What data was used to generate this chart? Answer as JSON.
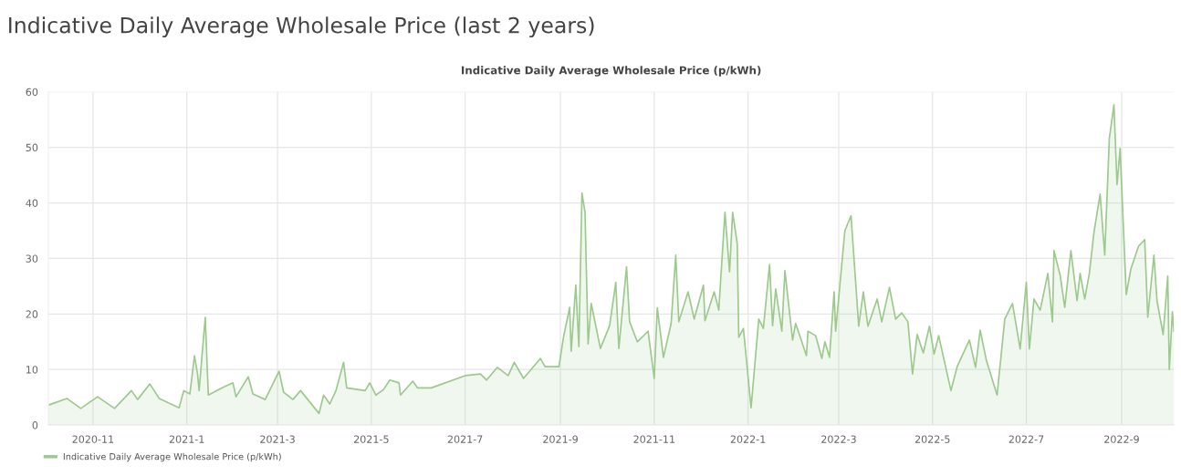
{
  "chart_data": {
    "type": "area",
    "title": "Indicative Daily Average Wholesale Price (last 2 years)",
    "subtitle": "Indicative Daily Average Wholesale Price (p/kWh)",
    "x": [
      "2020-10-03",
      "2020-10-15",
      "2020-10-24",
      "2020-11-04",
      "2020-11-15",
      "2020-11-26",
      "2020-11-30",
      "2020-12-08",
      "2020-12-14",
      "2020-12-27",
      "2020-12-30",
      "2021-01-03",
      "2021-01-06",
      "2021-01-08",
      "2021-01-09",
      "2021-01-13",
      "2021-01-15",
      "2021-01-24",
      "2021-01-31",
      "2021-02-02",
      "2021-02-10",
      "2021-02-13",
      "2021-02-21",
      "2021-03-02",
      "2021-03-05",
      "2021-03-11",
      "2021-03-16",
      "2021-03-28",
      "2021-03-31",
      "2021-04-04",
      "2021-04-08",
      "2021-04-13",
      "2021-04-15",
      "2021-04-27",
      "2021-04-30",
      "2021-05-04",
      "2021-05-09",
      "2021-05-13",
      "2021-05-19",
      "2021-05-20",
      "2021-05-28",
      "2021-05-31",
      "2021-06-09",
      "2021-07-01",
      "2021-07-11",
      "2021-07-15",
      "2021-07-22",
      "2021-07-29",
      "2021-08-02",
      "2021-08-08",
      "2021-08-19",
      "2021-08-22",
      "2021-08-31",
      "2021-09-03",
      "2021-09-07",
      "2021-09-08",
      "2021-09-11",
      "2021-09-13",
      "2021-09-15",
      "2021-09-17",
      "2021-09-19",
      "2021-09-21",
      "2021-09-27",
      "2021-10-03",
      "2021-10-07",
      "2021-10-09",
      "2021-10-14",
      "2021-10-16",
      "2021-10-21",
      "2021-10-28",
      "2021-11-01",
      "2021-11-03",
      "2021-11-07",
      "2021-11-12",
      "2021-11-15",
      "2021-11-17",
      "2021-11-23",
      "2021-11-27",
      "2021-12-03",
      "2021-12-04",
      "2021-12-10",
      "2021-12-13",
      "2021-12-17",
      "2021-12-20",
      "2021-12-22",
      "2021-12-25",
      "2021-12-26",
      "2021-12-29",
      "2022-01-03",
      "2022-01-08",
      "2022-01-11",
      "2022-01-15",
      "2022-01-17",
      "2022-01-19",
      "2022-01-23",
      "2022-01-25",
      "2022-01-30",
      "2022-02-01",
      "2022-02-08",
      "2022-02-09",
      "2022-02-14",
      "2022-02-18",
      "2022-02-20",
      "2022-02-23",
      "2022-02-26",
      "2022-02-27",
      "2022-03-05",
      "2022-03-09",
      "2022-03-14",
      "2022-03-17",
      "2022-03-20",
      "2022-03-26",
      "2022-03-29",
      "2022-04-03",
      "2022-04-07",
      "2022-04-11",
      "2022-04-15",
      "2022-04-18",
      "2022-04-21",
      "2022-04-25",
      "2022-04-29",
      "2022-05-02",
      "2022-05-05",
      "2022-05-13",
      "2022-05-17",
      "2022-05-25",
      "2022-05-29",
      "2022-06-01",
      "2022-06-05",
      "2022-06-12",
      "2022-06-17",
      "2022-06-22",
      "2022-06-27",
      "2022-07-01",
      "2022-07-03",
      "2022-07-06",
      "2022-07-10",
      "2022-07-15",
      "2022-07-18",
      "2022-07-19",
      "2022-07-23",
      "2022-07-26",
      "2022-07-30",
      "2022-08-03",
      "2022-08-05",
      "2022-08-08",
      "2022-08-11",
      "2022-08-14",
      "2022-08-18",
      "2022-08-21",
      "2022-08-24",
      "2022-08-27",
      "2022-08-29",
      "2022-08-31",
      "2022-09-02",
      "2022-09-04",
      "2022-09-07",
      "2022-09-12",
      "2022-09-16",
      "2022-09-18",
      "2022-09-22",
      "2022-09-24",
      "2022-09-28",
      "2022-10-01",
      "2022-10-02",
      "2022-10-04",
      "2022-10-05"
    ],
    "series": [
      {
        "name": "Indicative Daily Average Wholesale Price (p/kWh)",
        "color": "#9cc98c",
        "values": [
          3.6,
          4.8,
          3.0,
          5.1,
          3.0,
          6.2,
          4.6,
          7.4,
          4.8,
          3.1,
          6.2,
          5.6,
          12.5,
          9.2,
          6.2,
          19.4,
          5.4,
          6.7,
          7.6,
          5.1,
          8.7,
          5.6,
          4.6,
          9.7,
          5.9,
          4.6,
          6.2,
          2.1,
          5.4,
          3.8,
          6.2,
          11.3,
          6.7,
          6.2,
          7.6,
          5.4,
          6.4,
          8.1,
          7.6,
          5.4,
          7.9,
          6.7,
          6.7,
          8.9,
          9.2,
          8.1,
          10.4,
          8.9,
          11.3,
          8.4,
          12.0,
          10.5,
          10.5,
          15.8,
          21.2,
          13.3,
          25.2,
          14.1,
          41.8,
          38.3,
          14.6,
          21.9,
          13.8,
          17.9,
          25.7,
          13.8,
          28.5,
          18.6,
          15.0,
          16.9,
          8.4,
          21.1,
          12.2,
          18.3,
          30.6,
          18.6,
          24.0,
          19.1,
          25.2,
          18.8,
          24.0,
          20.7,
          38.3,
          27.6,
          38.3,
          32.7,
          15.8,
          17.4,
          3.1,
          19.1,
          17.4,
          28.9,
          17.9,
          24.5,
          16.9,
          27.8,
          15.3,
          18.3,
          12.5,
          16.9,
          16.1,
          12.0,
          15.0,
          12.2,
          24.0,
          16.9,
          35.0,
          37.7,
          17.8,
          24.0,
          17.8,
          22.7,
          18.6,
          24.8,
          19.1,
          20.2,
          18.6,
          9.2,
          16.3,
          13.0,
          17.8,
          12.8,
          16.1,
          6.2,
          10.5,
          15.3,
          10.4,
          17.1,
          11.7,
          5.4,
          19.1,
          21.9,
          13.7,
          25.7,
          13.7,
          22.7,
          20.7,
          27.3,
          18.6,
          31.4,
          27.0,
          21.2,
          31.4,
          22.4,
          27.3,
          22.7,
          27.3,
          34.7,
          41.6,
          30.6,
          51.6,
          57.7,
          43.3,
          49.8,
          36.7,
          23.5,
          28.1,
          32.2,
          33.4,
          19.4,
          30.6,
          22.4,
          16.3,
          26.8,
          10.0,
          20.4,
          16.9
        ]
      }
    ],
    "xlim": [
      "2020-10-03",
      "2022-10-05"
    ],
    "xticks": [
      {
        "value": "2020-11-01",
        "label": "2020-11"
      },
      {
        "value": "2021-01-01",
        "label": "2021-1"
      },
      {
        "value": "2021-03-01",
        "label": "2021-3"
      },
      {
        "value": "2021-05-01",
        "label": "2021-5"
      },
      {
        "value": "2021-07-01",
        "label": "2021-7"
      },
      {
        "value": "2021-09-01",
        "label": "2021-9"
      },
      {
        "value": "2021-11-01",
        "label": "2021-11"
      },
      {
        "value": "2022-01-01",
        "label": "2022-1"
      },
      {
        "value": "2022-03-01",
        "label": "2022-3"
      },
      {
        "value": "2022-05-01",
        "label": "2022-5"
      },
      {
        "value": "2022-07-01",
        "label": "2022-7"
      },
      {
        "value": "2022-09-01",
        "label": "2022-9"
      }
    ],
    "ylim": [
      0,
      60
    ],
    "yticks": [
      0,
      10,
      20,
      30,
      40,
      50,
      60
    ],
    "grid": true,
    "legend": "bottom left"
  }
}
